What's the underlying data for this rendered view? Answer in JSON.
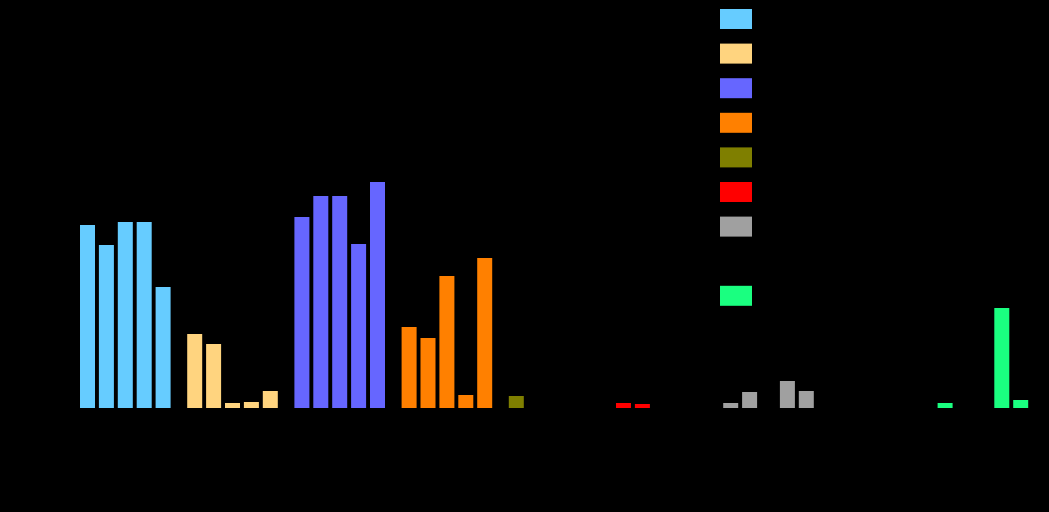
{
  "chart_data": {
    "type": "bar",
    "categories": [
      null,
      null,
      null,
      null,
      null
    ],
    "series": [
      {
        "color": "#66ccff",
        "values": [
          183,
          163,
          186,
          186,
          121
        ]
      },
      {
        "color": "#ffd47f",
        "values": [
          74,
          64,
          5,
          6,
          17
        ]
      },
      {
        "color": "#6666ff",
        "values": [
          191,
          212,
          212,
          164,
          226
        ]
      },
      {
        "color": "#ff8000",
        "values": [
          81,
          70,
          132,
          13,
          150
        ]
      },
      {
        "color": "#7f7f00",
        "values": [
          12,
          0,
          0,
          0,
          0
        ]
      },
      {
        "color": "#ff0000",
        "values": [
          5,
          4,
          0,
          0,
          0
        ]
      },
      {
        "color": "#a0a0a0",
        "values": [
          5,
          16,
          0,
          27,
          17
        ]
      },
      {
        "color": "#000000",
        "values": [
          0,
          0,
          0,
          0,
          0
        ]
      },
      {
        "color": "#1aff80",
        "values": [
          5,
          0,
          0,
          100,
          8
        ]
      }
    ],
    "ylim": [
      0,
      250
    ]
  }
}
